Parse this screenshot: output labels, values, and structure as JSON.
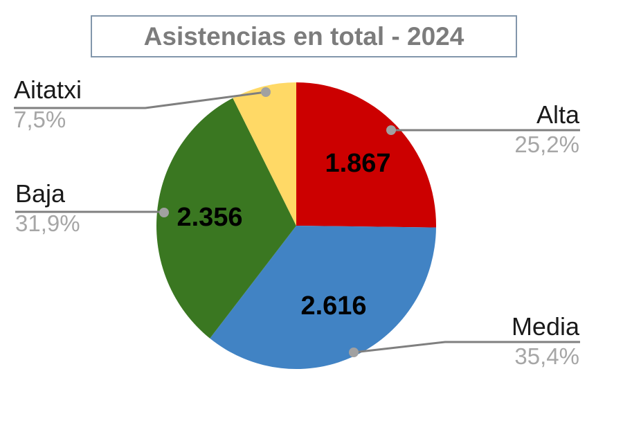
{
  "title": "Asistencias en total - 2024",
  "chart_data": {
    "type": "pie",
    "title": "Asistencias en total - 2024",
    "direction": "clockwise",
    "start_angle_deg": 0,
    "legend_position": "callout-labels",
    "slices": [
      {
        "label": "Alta",
        "value": 1867,
        "value_label": "1.867",
        "percent": 25.2,
        "percent_label": "25,2%",
        "color": "#CC0000"
      },
      {
        "label": "Media",
        "value": 2616,
        "value_label": "2.616",
        "percent": 35.4,
        "percent_label": "35,4%",
        "color": "#4183C4"
      },
      {
        "label": "Baja",
        "value": 2356,
        "value_label": "2.356",
        "percent": 31.9,
        "percent_label": "31,9%",
        "color": "#3A7721"
      },
      {
        "label": "Aitatxi",
        "value": null,
        "value_label": null,
        "percent": 7.5,
        "percent_label": "7,5%",
        "color": "#FFD966"
      }
    ],
    "colors": {
      "leader_line": "#7F7F7F",
      "leader_dot": "#A1A1A1",
      "title_text": "#7C7C7C",
      "title_border": "#8296AB",
      "percent_text": "#A6A6A6",
      "label_text": "#1A1A1A",
      "value_text": "#000000"
    }
  }
}
